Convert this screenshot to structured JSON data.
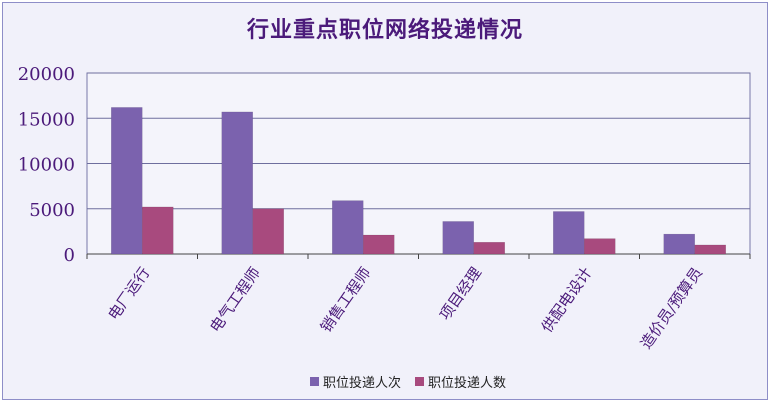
{
  "chart_data": {
    "type": "bar",
    "title": "行业重点职位网络投递情况",
    "categories": [
      "电厂运行",
      "电气工程师",
      "销售工程师",
      "项目经理",
      "供配电设计",
      "造价员/预算员"
    ],
    "category_labels_visible": [
      "电厂运行",
      "电气工程师",
      "销售工程师",
      "项目经理",
      "供配电设计",
      "造价员/预算员"
    ],
    "series": [
      {
        "name": "职位投递人次",
        "values": [
          16200,
          15700,
          5900,
          3600,
          4700,
          2200
        ],
        "color": "#7b62ae"
      },
      {
        "name": "职位投递人数",
        "values": [
          5200,
          5000,
          2100,
          1300,
          1700,
          1000
        ],
        "color": "#a84a7e"
      }
    ],
    "y_ticks": [
      "20000",
      "15000",
      "10000",
      "5000",
      "0"
    ],
    "ylim": [
      0,
      20000
    ],
    "grid": true,
    "legend_position": "bottom"
  }
}
